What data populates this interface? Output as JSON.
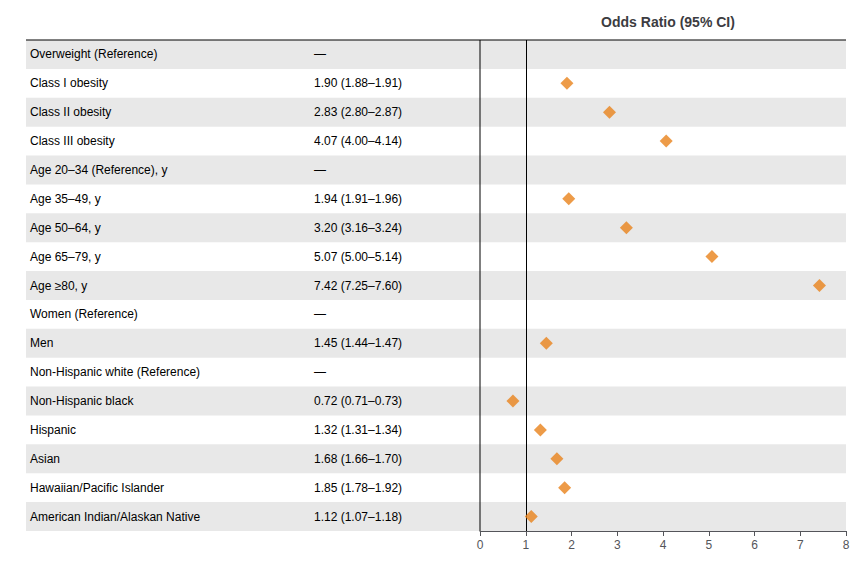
{
  "chart_data": {
    "type": "forest",
    "title": "Odds Ratio (95% CI)",
    "categories": [
      "Overweight (Reference)",
      "Class I obesity",
      "Class II obesity",
      "Class III obesity",
      "Age 20–34 (Reference), y",
      "Age 35–49, y",
      "Age 50–64, y",
      "Age 65–79, y",
      "Age ≥80, y",
      "Women (Reference)",
      "Men",
      "Non-Hispanic white (Reference)",
      "Non-Hispanic black",
      "Hispanic",
      "Asian",
      "Hawaiian/Pacific Islander",
      "American Indian/Alaskan Native"
    ],
    "values": [
      null,
      1.9,
      2.83,
      4.07,
      null,
      1.94,
      3.2,
      5.07,
      7.42,
      null,
      1.45,
      null,
      0.72,
      1.32,
      1.68,
      1.85,
      1.12
    ],
    "value_labels": [
      "—",
      "1.90 (1.88–1.91)",
      "2.83 (2.80–2.87)",
      "4.07 (4.00–4.14)",
      "—",
      "1.94 (1.91–1.96)",
      "3.20 (3.16–3.24)",
      "5.07 (5.00–5.14)",
      "7.42 (7.25–7.60)",
      "—",
      "1.45 (1.44–1.47)",
      "—",
      "0.72 (0.71–0.73)",
      "1.32 (1.31–1.34)",
      "1.68 (1.66–1.70)",
      "1.85 (1.78–1.92)",
      "1.12 (1.07–1.18)"
    ],
    "color": "#E8821A",
    "marker": "diamond",
    "reference_line": 1,
    "xlim": [
      0,
      8
    ],
    "xticks": [
      0,
      1,
      2,
      3,
      4,
      5,
      6,
      7,
      8
    ],
    "grid": false
  }
}
